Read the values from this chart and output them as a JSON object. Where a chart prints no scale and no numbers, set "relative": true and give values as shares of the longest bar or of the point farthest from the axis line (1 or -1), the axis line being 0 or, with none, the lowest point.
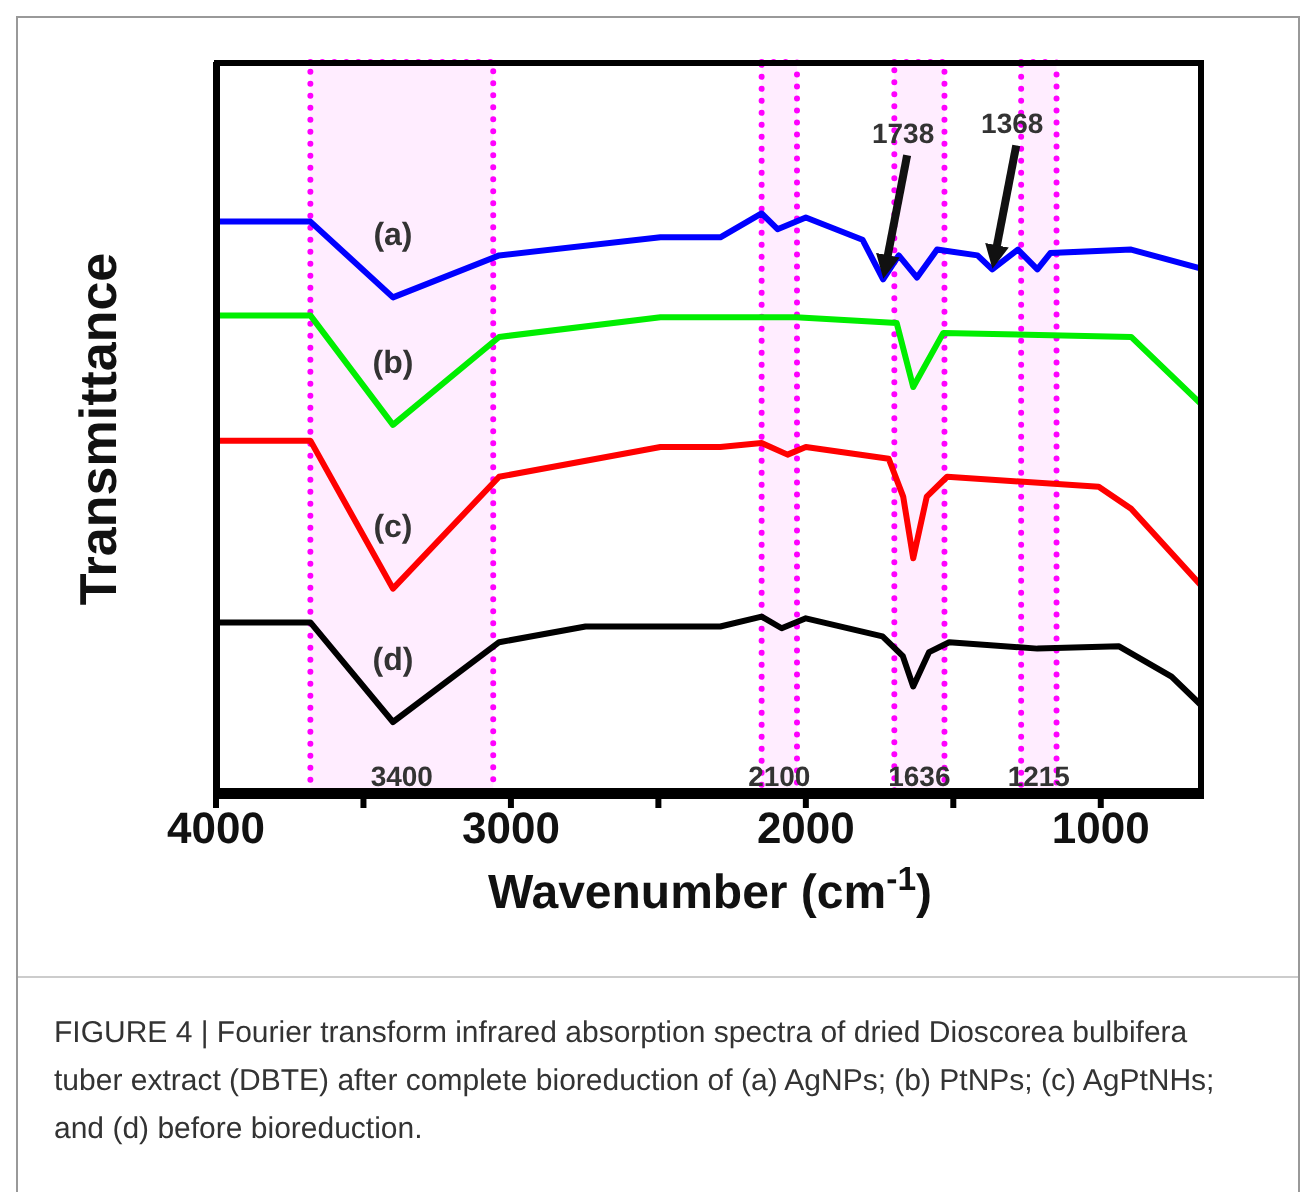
{
  "chart_data": {
    "type": "line",
    "relative": true,
    "xlabel": "Wavenumber (cm$^{-1}$)",
    "ylabel": "Transmittance",
    "xlim": [
      4000,
      650
    ],
    "xticks": [
      4000,
      {
        "value": 3500,
        "label": null
      },
      3000,
      {
        "value": 2500,
        "label": null
      },
      2000,
      {
        "value": 1500,
        "label": null
      },
      1000
    ],
    "marker": "none",
    "line_style": "solid",
    "grid": false,
    "legend": false,
    "series": [
      {
        "name": "(a)",
        "color": "#0000ff",
        "x": [
          4000,
          3680,
          3400,
          3040,
          2493,
          2290,
          2150,
          2096,
          2000,
          1808,
          1738,
          1685,
          1623,
          1555,
          1418,
          1368,
          1281,
          1215,
          1171,
          897,
          650
        ],
        "values": [
          0.986,
          0.986,
          0.856,
          0.928,
          0.959,
          0.959,
          1.0,
          0.973,
          0.993,
          0.955,
          0.887,
          0.928,
          0.89,
          0.938,
          0.928,
          0.904,
          0.938,
          0.904,
          0.932,
          0.938,
          0.904
        ]
      },
      {
        "name": "(b)",
        "color": "#00ee00",
        "x": [
          4000,
          3680,
          3400,
          3040,
          2493,
          2290,
          2034,
          1692,
          1636,
          1534,
          897,
          650
        ],
        "values": [
          0.825,
          0.825,
          0.637,
          0.788,
          0.822,
          0.822,
          0.822,
          0.812,
          0.702,
          0.795,
          0.788,
          0.668
        ]
      },
      {
        "name": "(c)",
        "color": "#ff0000",
        "x": [
          4000,
          3680,
          3400,
          3040,
          2493,
          2290,
          2150,
          2062,
          2000,
          1719,
          1670,
          1636,
          1590,
          1521,
          1007,
          897,
          650
        ],
        "values": [
          0.61,
          0.61,
          0.356,
          0.548,
          0.599,
          0.599,
          0.606,
          0.586,
          0.599,
          0.579,
          0.514,
          0.408,
          0.514,
          0.548,
          0.531,
          0.493,
          0.356
        ]
      },
      {
        "name": "(d)",
        "color": "#000000",
        "x": [
          4000,
          3680,
          3400,
          3040,
          2747,
          2493,
          2290,
          2150,
          2082,
          2000,
          1740,
          1671,
          1636,
          1582,
          1514,
          1215,
          938,
          760,
          650
        ],
        "values": [
          0.298,
          0.298,
          0.127,
          0.264,
          0.291,
          0.291,
          0.291,
          0.308,
          0.288,
          0.305,
          0.274,
          0.24,
          0.188,
          0.247,
          0.264,
          0.253,
          0.257,
          0.205,
          0.151
        ]
      }
    ],
    "bands": [
      {
        "axis": "x",
        "from": 3680,
        "to": 3060,
        "label": "3400",
        "color": "#ff00ff"
      },
      {
        "axis": "x",
        "from": 2150,
        "to": 2030,
        "label": "2100",
        "color": "#ff00ff"
      },
      {
        "axis": "x",
        "from": 1700,
        "to": 1530,
        "label": "1636",
        "color": "#ff00ff"
      },
      {
        "axis": "x",
        "from": 1270,
        "to": 1150,
        "label": "1215",
        "color": "#ff00ff"
      }
    ],
    "annotations": [
      {
        "text": "1738",
        "x": 1738,
        "y": 0.887
      },
      {
        "text": "1368",
        "x": 1368,
        "y": 0.904
      },
      "FIGURE 4 | Fourier transform infrared absorption spectra of dried Dioscorea bulbifera tuber extract (DBTE) after complete bioreduction of (a) AgNPs; (b) PtNPs; (c) AgPtNHs; and (d) before bioreduction."
    ]
  }
}
